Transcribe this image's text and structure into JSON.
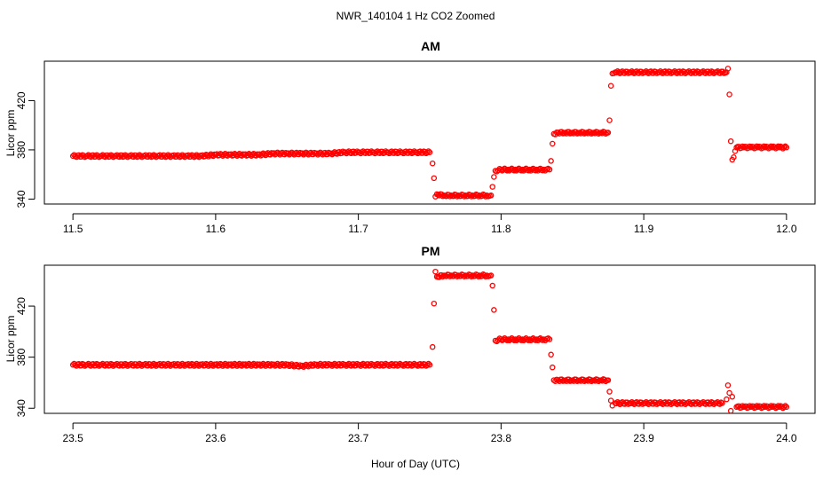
{
  "page": {
    "title": "NWR_140104  1 Hz CO2 Zoomed",
    "xlabel": "Hour of Day (UTC)"
  },
  "chart_data": [
    {
      "type": "scatter",
      "title": "AM",
      "ylabel": "Licor ppm",
      "xlim": [
        11.48,
        12.02
      ],
      "ylim": [
        336,
        452
      ],
      "x_ticks": [
        11.5,
        11.6,
        11.7,
        11.8,
        11.9,
        12.0
      ],
      "x_tick_labels": [
        "11.5",
        "11.6",
        "11.7",
        "11.8",
        "11.9",
        "12.0"
      ],
      "y_ticks": [
        340,
        380,
        420
      ],
      "y_tick_labels": [
        "340",
        "380",
        "420"
      ],
      "marker": "open-circle",
      "color": "#ff0000",
      "points": [
        [
          11.5,
          375
        ],
        [
          11.51,
          375
        ],
        [
          11.52,
          375
        ],
        [
          11.53,
          375
        ],
        [
          11.54,
          375
        ],
        [
          11.55,
          375
        ],
        [
          11.56,
          375
        ],
        [
          11.57,
          375
        ],
        [
          11.58,
          375
        ],
        [
          11.59,
          375
        ],
        [
          11.6,
          376
        ],
        [
          11.61,
          376
        ],
        [
          11.62,
          376
        ],
        [
          11.63,
          376
        ],
        [
          11.64,
          377
        ],
        [
          11.65,
          377
        ],
        [
          11.66,
          377
        ],
        [
          11.67,
          377
        ],
        [
          11.68,
          377
        ],
        [
          11.69,
          378
        ],
        [
          11.7,
          378
        ],
        [
          11.71,
          378
        ],
        [
          11.72,
          378
        ],
        [
          11.73,
          378
        ],
        [
          11.74,
          378
        ],
        [
          11.75,
          378
        ],
        [
          11.752,
          369
        ],
        [
          11.753,
          357
        ],
        [
          11.754,
          342
        ],
        [
          11.755,
          344
        ],
        [
          11.76,
          343
        ],
        [
          11.765,
          343
        ],
        [
          11.77,
          343
        ],
        [
          11.775,
          343
        ],
        [
          11.78,
          343
        ],
        [
          11.785,
          343
        ],
        [
          11.79,
          343
        ],
        [
          11.793,
          343
        ],
        [
          11.794,
          350
        ],
        [
          11.795,
          358
        ],
        [
          11.796,
          363
        ],
        [
          11.8,
          364
        ],
        [
          11.805,
          364
        ],
        [
          11.81,
          364
        ],
        [
          11.815,
          364
        ],
        [
          11.82,
          364
        ],
        [
          11.825,
          364
        ],
        [
          11.83,
          364
        ],
        [
          11.834,
          364
        ],
        [
          11.835,
          371
        ],
        [
          11.836,
          385
        ],
        [
          11.837,
          393
        ],
        [
          11.84,
          394
        ],
        [
          11.845,
          394
        ],
        [
          11.85,
          394
        ],
        [
          11.855,
          394
        ],
        [
          11.86,
          394
        ],
        [
          11.865,
          394
        ],
        [
          11.87,
          394
        ],
        [
          11.875,
          394
        ],
        [
          11.876,
          404
        ],
        [
          11.877,
          432
        ],
        [
          11.878,
          442
        ],
        [
          11.88,
          443
        ],
        [
          11.89,
          443
        ],
        [
          11.9,
          443
        ],
        [
          11.91,
          443
        ],
        [
          11.92,
          443
        ],
        [
          11.93,
          443
        ],
        [
          11.94,
          443
        ],
        [
          11.95,
          443
        ],
        [
          11.958,
          443
        ],
        [
          11.959,
          446
        ],
        [
          11.96,
          425
        ],
        [
          11.961,
          387
        ],
        [
          11.962,
          372
        ],
        [
          11.963,
          374
        ],
        [
          11.964,
          379
        ],
        [
          11.965,
          382
        ],
        [
          11.97,
          382
        ],
        [
          11.975,
          382
        ],
        [
          11.98,
          382
        ],
        [
          11.985,
          382
        ],
        [
          11.99,
          382
        ],
        [
          11.995,
          382
        ],
        [
          12.0,
          382
        ]
      ]
    },
    {
      "type": "scatter",
      "title": "PM",
      "ylabel": "Licor ppm",
      "xlim": [
        23.48,
        24.02
      ],
      "ylim": [
        336,
        452
      ],
      "x_ticks": [
        23.5,
        23.6,
        23.7,
        23.8,
        23.9,
        24.0
      ],
      "x_tick_labels": [
        "23.5",
        "23.6",
        "23.7",
        "23.8",
        "23.9",
        "24.0"
      ],
      "y_ticks": [
        340,
        380,
        420
      ],
      "y_tick_labels": [
        "340",
        "380",
        "420"
      ],
      "marker": "open-circle",
      "color": "#ff0000",
      "points": [
        [
          23.5,
          374
        ],
        [
          23.51,
          374
        ],
        [
          23.52,
          374
        ],
        [
          23.53,
          374
        ],
        [
          23.54,
          374
        ],
        [
          23.55,
          374
        ],
        [
          23.56,
          374
        ],
        [
          23.57,
          374
        ],
        [
          23.58,
          374
        ],
        [
          23.59,
          374
        ],
        [
          23.6,
          374
        ],
        [
          23.61,
          374
        ],
        [
          23.62,
          374
        ],
        [
          23.63,
          374
        ],
        [
          23.64,
          374
        ],
        [
          23.65,
          374
        ],
        [
          23.66,
          373
        ],
        [
          23.67,
          374
        ],
        [
          23.68,
          374
        ],
        [
          23.69,
          374
        ],
        [
          23.7,
          374
        ],
        [
          23.71,
          374
        ],
        [
          23.72,
          374
        ],
        [
          23.73,
          374
        ],
        [
          23.74,
          374
        ],
        [
          23.75,
          374
        ],
        [
          23.752,
          388
        ],
        [
          23.753,
          422
        ],
        [
          23.754,
          447
        ],
        [
          23.755,
          443
        ],
        [
          23.76,
          444
        ],
        [
          23.765,
          444
        ],
        [
          23.77,
          444
        ],
        [
          23.775,
          444
        ],
        [
          23.78,
          444
        ],
        [
          23.785,
          444
        ],
        [
          23.79,
          444
        ],
        [
          23.793,
          444
        ],
        [
          23.794,
          436
        ],
        [
          23.795,
          417
        ],
        [
          23.796,
          393
        ],
        [
          23.8,
          394
        ],
        [
          23.805,
          394
        ],
        [
          23.81,
          394
        ],
        [
          23.815,
          394
        ],
        [
          23.82,
          394
        ],
        [
          23.825,
          394
        ],
        [
          23.83,
          394
        ],
        [
          23.834,
          394
        ],
        [
          23.835,
          382
        ],
        [
          23.836,
          372
        ],
        [
          23.837,
          362
        ],
        [
          23.84,
          362
        ],
        [
          23.845,
          362
        ],
        [
          23.85,
          362
        ],
        [
          23.855,
          362
        ],
        [
          23.86,
          362
        ],
        [
          23.865,
          362
        ],
        [
          23.87,
          362
        ],
        [
          23.875,
          362
        ],
        [
          23.876,
          353
        ],
        [
          23.877,
          346
        ],
        [
          23.878,
          342
        ],
        [
          23.88,
          344
        ],
        [
          23.89,
          344
        ],
        [
          23.9,
          344
        ],
        [
          23.91,
          344
        ],
        [
          23.92,
          344
        ],
        [
          23.93,
          344
        ],
        [
          23.94,
          344
        ],
        [
          23.95,
          344
        ],
        [
          23.955,
          344
        ],
        [
          23.958,
          347
        ],
        [
          23.959,
          358
        ],
        [
          23.96,
          352
        ],
        [
          23.961,
          338
        ],
        [
          23.962,
          349
        ],
        [
          23.965,
          341
        ],
        [
          23.97,
          341
        ],
        [
          23.975,
          341
        ],
        [
          23.98,
          341
        ],
        [
          23.985,
          341
        ],
        [
          23.99,
          341
        ],
        [
          23.995,
          341
        ],
        [
          24.0,
          341
        ]
      ]
    }
  ]
}
